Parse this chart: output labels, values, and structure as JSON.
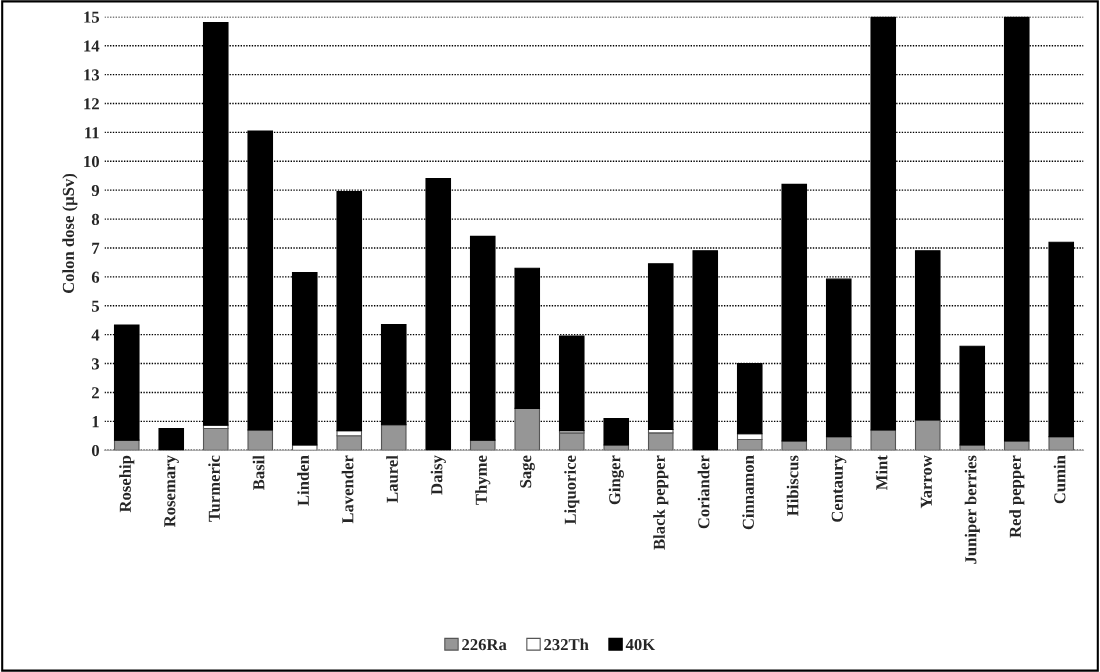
{
  "chart_data": {
    "type": "bar",
    "stacked": true,
    "ylabel": "Colon dose (µSv)",
    "categories": [
      "Rosehip",
      "Rosemary",
      "Turmeric",
      "Basil",
      "Linden",
      "Lavender",
      "Laurel",
      "Daisy",
      "Thyme",
      "Sage",
      "Liquorice",
      "Ginger",
      "Black pepper",
      "Coriander",
      "Cinnamon",
      "Hibiscus",
      "Centaury",
      "Mint",
      "Yarrow",
      "Juniper berries",
      "Red pepper",
      "Cumin"
    ],
    "series": [
      {
        "name": "226Ra",
        "color": "#969696",
        "values": [
          0.35,
          0,
          0.75,
          0.7,
          0,
          0.5,
          0.88,
          0,
          0.35,
          1.45,
          0.6,
          0.18,
          0.6,
          0,
          0.37,
          0.32,
          0.47,
          0.7,
          1.05,
          0.18,
          0.32,
          0.47
        ]
      },
      {
        "name": "232Th",
        "color": "#ffffff",
        "values": [
          0,
          0,
          0.12,
          0,
          0.18,
          0.18,
          0,
          0,
          0,
          0,
          0.08,
          0,
          0.12,
          0,
          0.2,
          0,
          0,
          0,
          0,
          0,
          0,
          0
        ]
      },
      {
        "name": "40K",
        "color": "#000000",
        "values": [
          3.98,
          0.75,
          13.93,
          10.35,
          5.97,
          8.27,
          3.47,
          9.4,
          7.05,
          4.85,
          3.27,
          0.92,
          5.73,
          6.9,
          2.43,
          8.88,
          5.45,
          14.3,
          5.85,
          3.42,
          14.68,
          6.73
        ]
      }
    ],
    "ylim": [
      0,
      15
    ],
    "yticks": [
      0,
      1,
      2,
      3,
      4,
      5,
      6,
      7,
      8,
      9,
      10,
      11,
      12,
      13,
      14,
      15
    ],
    "grid": "y",
    "legend": "bottom"
  }
}
